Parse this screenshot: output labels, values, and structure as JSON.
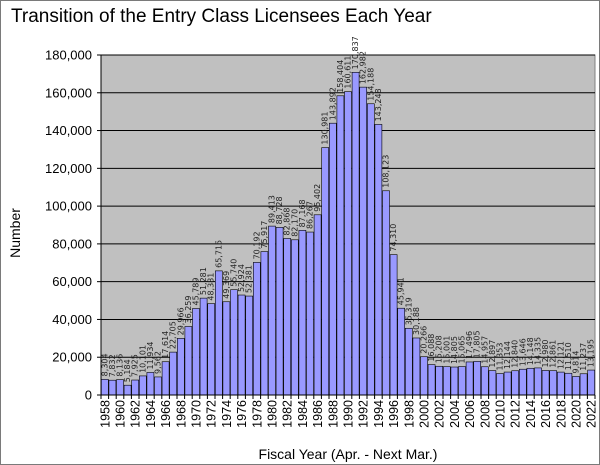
{
  "chart_data": {
    "type": "bar",
    "title": "Transition of the Entry Class Licensees Each Year",
    "xlabel": "Fiscal Year (Apr. - Next Mar.)",
    "ylabel": "Number",
    "ylim": [
      0,
      180000
    ],
    "yticks": [
      0,
      20000,
      40000,
      60000,
      80000,
      100000,
      120000,
      140000,
      160000,
      180000
    ],
    "ytick_labels": [
      "0",
      "20,000",
      "40,000",
      "60,000",
      "80,000",
      "100,000",
      "120,000",
      "140,000",
      "160,000",
      "180,000"
    ],
    "grid": true,
    "bar_color": "#9999ff",
    "plot_background": "#c0c0c0",
    "categories": [
      "1958",
      "1959",
      "1960",
      "1961",
      "1962",
      "1963",
      "1964",
      "1965",
      "1966",
      "1967",
      "1968",
      "1969",
      "1970",
      "1971",
      "1972",
      "1973",
      "1974",
      "1975",
      "1976",
      "1977",
      "1978",
      "1979",
      "1980",
      "1981",
      "1982",
      "1983",
      "1984",
      "1985",
      "1986",
      "1987",
      "1988",
      "1989",
      "1990",
      "1991",
      "1992",
      "1993",
      "1994",
      "1995",
      "1996",
      "1997",
      "1998",
      "1999",
      "2000",
      "2001",
      "2002",
      "2003",
      "2004",
      "2005",
      "2006",
      "2007",
      "2008",
      "2009",
      "2010",
      "2011",
      "2012",
      "2013",
      "2014",
      "2015",
      "2016",
      "2017",
      "2018",
      "2019",
      "2020",
      "2021",
      "2022"
    ],
    "xtick_labels": [
      "1958",
      "1960",
      "1962",
      "1964",
      "1966",
      "1968",
      "1970",
      "1972",
      "1974",
      "1976",
      "1978",
      "1980",
      "1982",
      "1984",
      "1986",
      "1988",
      "1990",
      "1992",
      "1994",
      "1996",
      "1998",
      "2000",
      "2002",
      "2004",
      "2006",
      "2008",
      "2010",
      "2012",
      "2014",
      "2016",
      "2018",
      "2020",
      "2022"
    ],
    "values": [
      8304,
      7832,
      8136,
      5184,
      7925,
      10101,
      11934,
      9562,
      17614,
      22705,
      29966,
      36259,
      45789,
      51281,
      48381,
      65715,
      49369,
      55740,
      52924,
      52381,
      70192,
      75917,
      89413,
      88728,
      82868,
      82170,
      87168,
      86267,
      95402,
      130981,
      143892,
      158404,
      160611,
      170837,
      162982,
      154188,
      143248,
      108123,
      74310,
      45941,
      35319,
      30188,
      20266,
      16088,
      15208,
      15001,
      14805,
      15065,
      17496,
      17805,
      14957,
      12897,
      11353,
      12144,
      12840,
      13646,
      14148,
      14335,
      12980,
      12861,
      12121,
      11510,
      9814,
      11237,
      13195
    ],
    "data_labels": [
      "8,304",
      "7,832",
      "8,136",
      "5,184",
      "7,925",
      "10,101",
      "11,934",
      "9,562",
      "17,614",
      "22,705",
      "29,966",
      "36,259",
      "45,789",
      "51,281",
      "48,381",
      "65,715",
      "49,369",
      "55,740",
      "52,924",
      "52,381",
      "70,192",
      "75,917",
      "89,413",
      "88,728",
      "82,868",
      "82,170",
      "87,168",
      "86,267",
      "95,402",
      "130,981",
      "143,892",
      "158,404",
      "160,611",
      "170,837",
      "162,982",
      "154,188",
      "143,248",
      "108,123",
      "74,310",
      "45,941",
      "35,319",
      "30,188",
      "20,266",
      "16,088",
      "15,208",
      "15,001",
      "14,805",
      "15,065",
      "17,496",
      "17,805",
      "14,957",
      "12,897",
      "11,353",
      "12,144",
      "12,840",
      "13,646",
      "14,148",
      "14,335",
      "12,980",
      "12,861",
      "12,121",
      "11,510",
      "9,814",
      "11,237",
      "13,195"
    ]
  }
}
